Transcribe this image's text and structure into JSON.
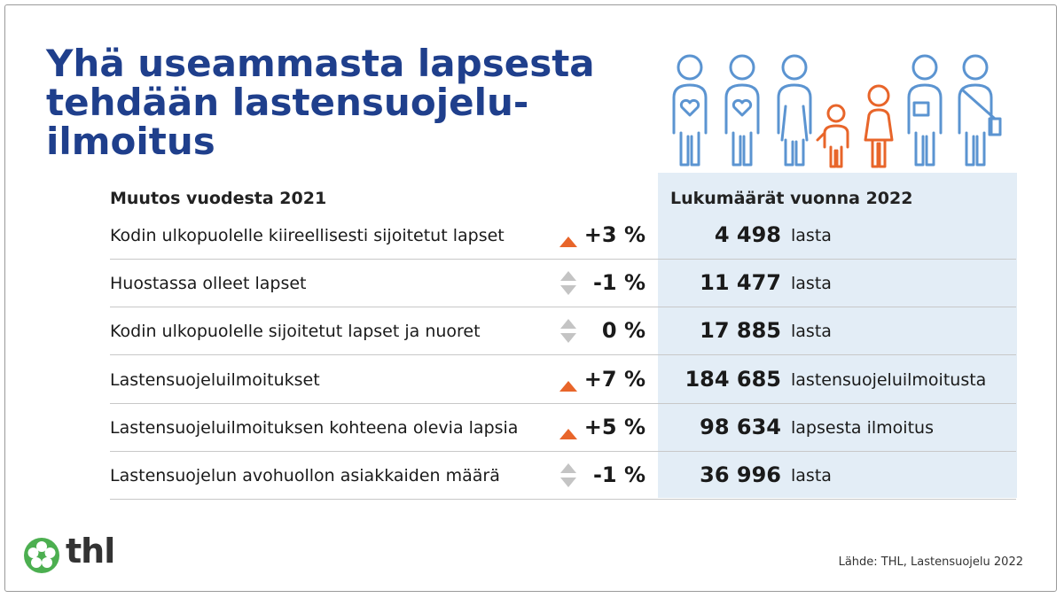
{
  "title_lines": [
    "Yhä useammasta lapsesta",
    "tehdään lastensuojelu-",
    "ilmoitus"
  ],
  "header_left": "Muutos vuodesta 2021",
  "header_right": "Lukumäärät vuonna 2022",
  "chart_data": {
    "type": "table",
    "columns": [
      "Muutos vuodesta 2021",
      "Lukumäärät vuonna 2022"
    ],
    "rows": [
      {
        "label": "Kodin ulkopuolelle kiireellisesti sijoitetut lapset",
        "trend": "up",
        "change": "+3 %",
        "count": "4 498",
        "unit": "lasta"
      },
      {
        "label": "Huostassa olleet lapset",
        "trend": "neutral",
        "change": "-1 %",
        "count": "11 477",
        "unit": "lasta"
      },
      {
        "label": "Kodin ulkopuolelle sijoitetut lapset ja nuoret",
        "trend": "neutral",
        "change": "0 %",
        "count": "17 885",
        "unit": "lasta"
      },
      {
        "label": "Lastensuojeluilmoitukset",
        "trend": "up",
        "change": "+7 %",
        "count": "184 685",
        "unit": "lastensuojeluilmoitusta"
      },
      {
        "label": "Lastensuojeluilmoituksen kohteena olevia lapsia",
        "trend": "up",
        "change": "+5 %",
        "count": "98 634",
        "unit": "lapsesta ilmoitus"
      },
      {
        "label": "Lastensuojelun avohuollon asiakkaiden määrä",
        "trend": "neutral",
        "change": "-1 %",
        "count": "36 996",
        "unit": "lasta"
      }
    ]
  },
  "colors": {
    "title": "#1f3f8c",
    "panel": "#e3edf6",
    "up_arrow": "#e8652a",
    "neutral_arrow": "#c4c4c4",
    "adult_figure": "#5b94d1",
    "child_figure": "#e8652a",
    "logo": "#4caf50"
  },
  "icons": [
    "family-figures-icon",
    "up-arrow-icon",
    "neutral-arrows-icon",
    "thl-flower-logo-icon"
  ],
  "logo_text": "thl",
  "source": "Lähde: THL, Lastensuojelu 2022"
}
